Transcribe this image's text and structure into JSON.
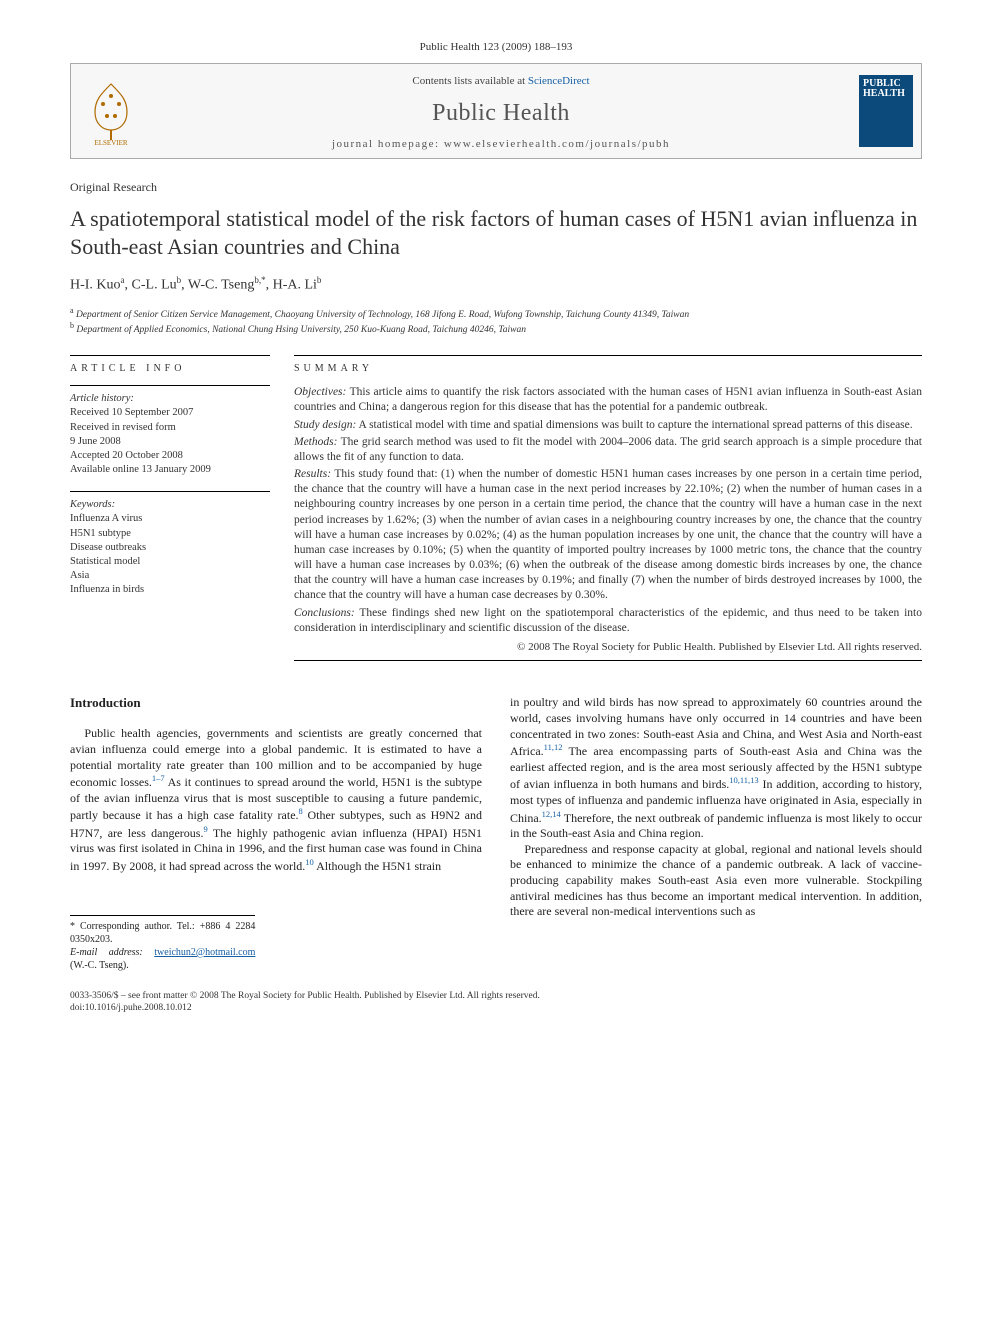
{
  "header": {
    "journal_ref": "Public Health 123 (2009) 188–193"
  },
  "masthead": {
    "contents_line_pre": "Contents lists available at ",
    "contents_link": "ScienceDirect",
    "journal_name": "Public Health",
    "homepage_line": "journal homepage: www.elsevierhealth.com/journals/pubh",
    "cover_label_top": "PUBLIC",
    "cover_label_bottom": "HEALTH"
  },
  "article": {
    "type": "Original Research",
    "title": "A spatiotemporal statistical model of the risk factors of human cases of H5N1 avian influenza in South-east Asian countries and China",
    "authors_html": "H-I. Kuo<sup>a</sup>, C-L. Lu<sup>b</sup>, W-C. Tseng<sup>b,*</sup>, H-A. Li<sup>b</sup>",
    "affiliations": [
      "Department of Senior Citizen Service Management, Chaoyang University of Technology, 168 Jifong E. Road, Wufong Township, Taichung County 41349, Taiwan",
      "Department of Applied Economics, National Chung Hsing University, 250 Kuo-Kuang Road, Taichung 40246, Taiwan"
    ]
  },
  "info": {
    "heading": "ARTICLE INFO",
    "history_label": "Article history:",
    "history": [
      "Received 10 September 2007",
      "Received in revised form",
      "9 June 2008",
      "Accepted 20 October 2008",
      "Available online 13 January 2009"
    ],
    "keywords_label": "Keywords:",
    "keywords": [
      "Influenza A virus",
      "H5N1 subtype",
      "Disease outbreaks",
      "Statistical model",
      "Asia",
      "Influenza in birds"
    ]
  },
  "summary": {
    "heading": "SUMMARY",
    "objectives_label": "Objectives:",
    "objectives": " This article aims to quantify the risk factors associated with the human cases of H5N1 avian influenza in South-east Asian countries and China; a dangerous region for this disease that has the potential for a pandemic outbreak.",
    "design_label": "Study design:",
    "design": " A statistical model with time and spatial dimensions was built to capture the international spread patterns of this disease.",
    "methods_label": "Methods:",
    "methods": " The grid search method was used to fit the model with 2004–2006 data. The grid search approach is a simple procedure that allows the fit of any function to data.",
    "results_label": "Results:",
    "results": " This study found that: (1) when the number of domestic H5N1 human cases increases by one person in a certain time period, the chance that the country will have a human case in the next period increases by 22.10%; (2) when the number of human cases in a neighbouring country increases by one person in a certain time period, the chance that the country will have a human case in the next period increases by 1.62%; (3) when the number of avian cases in a neighbouring country increases by one, the chance that the country will have a human case increases by 0.02%; (4) as the human population increases by one unit, the chance that the country will have a human case increases by 0.10%; (5) when the quantity of imported poultry increases by 1000 metric tons, the chance that the country will have a human case increases by 0.03%; (6) when the outbreak of the disease among domestic birds increases by one, the chance that the country will have a human case increases by 0.19%; and finally (7) when the number of birds destroyed increases by 1000, the chance that the country will have a human case decreases by 0.30%.",
    "conclusions_label": "Conclusions:",
    "conclusions": " These findings shed new light on the spatiotemporal characteristics of the epidemic, and thus need to be taken into consideration in interdisciplinary and scientific discussion of the disease.",
    "copyright": "© 2008 The Royal Society for Public Health. Published by Elsevier Ltd. All rights reserved."
  },
  "body": {
    "intro_heading": "Introduction",
    "left_col": "Public health agencies, governments and scientists are greatly concerned that avian influenza could emerge into a global pandemic. It is estimated to have a potential mortality rate greater than 100 million and to be accompanied by huge economic losses.<sup>1–7</sup> As it continues to spread around the world, H5N1 is the subtype of the avian influenza virus that is most susceptible to causing a future pandemic, partly because it has a high case fatality rate.<sup>8</sup> Other subtypes, such as H9N2 and H7N7, are less dangerous.<sup>9</sup> The highly pathogenic avian influenza (HPAI) H5N1 virus was first isolated in China in 1996, and the first human case was found in China in 1997. By 2008, it had spread across the world.<sup>10</sup> Although the H5N1 strain",
    "right_col_p1": "in poultry and wild birds has now spread to approximately 60 countries around the world, cases involving humans have only occurred in 14 countries and have been concentrated in two zones: South-east Asia and China, and West Asia and North-east Africa.<sup>11,12</sup> The area encompassing parts of South-east Asia and China was the earliest affected region, and is the area most seriously affected by the H5N1 subtype of avian influenza in both humans and birds.<sup>10,11,13</sup> In addition, according to history, most types of influenza and pandemic influenza have originated in Asia, especially in China.<sup>12,14</sup> Therefore, the next outbreak of pandemic influenza is most likely to occur in the South-east Asia and China region.",
    "right_col_p2": "Preparedness and response capacity at global, regional and national levels should be enhanced to minimize the chance of a pandemic outbreak. A lack of vaccine-producing capability makes South-east Asia even more vulnerable. Stockpiling antiviral medicines has thus become an important medical intervention. In addition, there are several non-medical interventions such as"
  },
  "footnotes": {
    "corresponding": "* Corresponding author. Tel.: +886 4 2284 0350x203.",
    "email_label": "E-mail address:",
    "email": "tweichun2@hotmail.com",
    "email_tail": " (W.-C. Tseng)."
  },
  "bottom": {
    "line1": "0033-3506/$ – see front matter © 2008 The Royal Society for Public Health. Published by Elsevier Ltd. All rights reserved.",
    "line2": "doi:10.1016/j.puhe.2008.10.012"
  },
  "colors": {
    "link": "#1760a5",
    "text": "#222222",
    "rule": "#000000",
    "cover_bg": "#0b4a7a"
  }
}
